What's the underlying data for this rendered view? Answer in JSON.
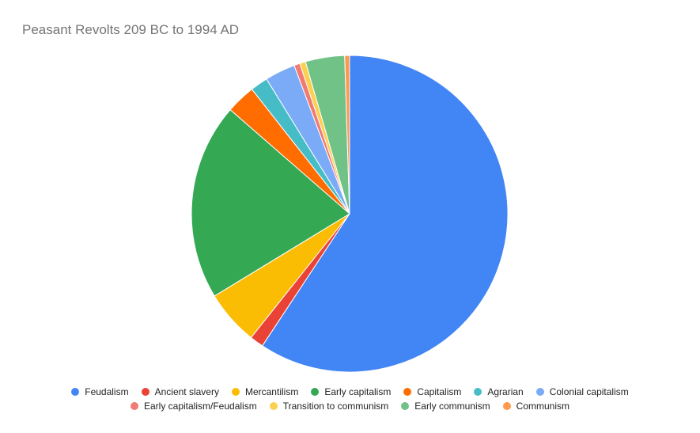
{
  "chart_data": {
    "type": "pie",
    "title": "Peasant Revolts 209 BC to 1994 AD",
    "slices": [
      {
        "label": "Feudalism",
        "value": 59.3,
        "color": "#4285f4"
      },
      {
        "label": "Ancient slavery",
        "value": 1.4,
        "color": "#ea4335"
      },
      {
        "label": "Mercantilism",
        "value": 5.6,
        "color": "#fbbc04"
      },
      {
        "label": "Early capitalism",
        "value": 20.1,
        "color": "#34a853"
      },
      {
        "label": "Capitalism",
        "value": 3.0,
        "color": "#ff6d01"
      },
      {
        "label": "Agrarian",
        "value": 1.8,
        "color": "#46bdc6"
      },
      {
        "label": "Colonial capitalism",
        "value": 3.1,
        "color": "#7baaf7"
      },
      {
        "label": "Early capitalism/Feudalism",
        "value": 0.6,
        "color": "#f07b72"
      },
      {
        "label": "Transition to communism",
        "value": 0.6,
        "color": "#fcd04f"
      },
      {
        "label": "Early communism",
        "value": 4.0,
        "color": "#71c287"
      },
      {
        "label": "Communism",
        "value": 0.5,
        "color": "#ff994d"
      }
    ],
    "legend_position": "bottom"
  }
}
